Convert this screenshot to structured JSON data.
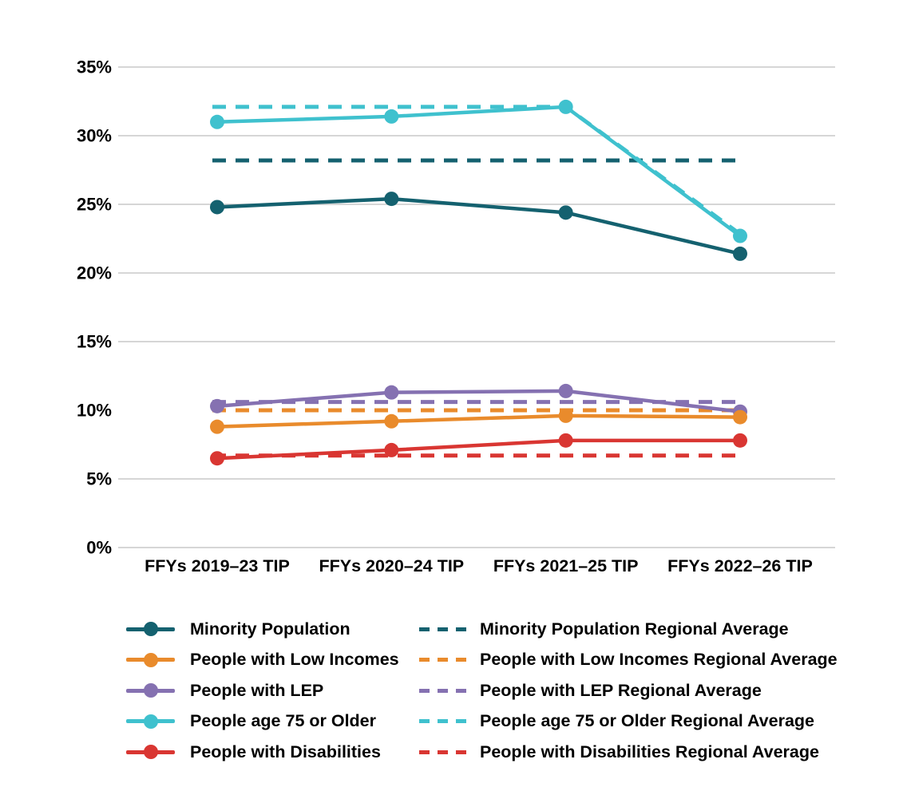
{
  "chart_data": {
    "type": "line",
    "title": "",
    "categories": [
      "FFYs 2019–23 TIP",
      "FFYs 2020–24 TIP",
      "FFYs 2021–25 TIP",
      "FFYs 2022–26 TIP"
    ],
    "y_axis": {
      "min": 0,
      "max": 35,
      "tick_step": 5,
      "tick_labels": [
        "0%",
        "5%",
        "10%",
        "15%",
        "20%",
        "25%",
        "30%",
        "35%"
      ],
      "gridline_values": [
        0,
        5,
        15,
        20,
        25,
        30,
        35
      ],
      "gridline_color": "#d6d6d6"
    },
    "series": [
      {
        "name": "Minority Population",
        "style": "solid",
        "marker": true,
        "color": "#14616f",
        "values": [
          24.8,
          25.4,
          24.4,
          21.4
        ]
      },
      {
        "name": "People with Low Incomes",
        "style": "solid",
        "marker": true,
        "color": "#e98b2c",
        "values": [
          8.8,
          9.2,
          9.6,
          9.5
        ]
      },
      {
        "name": "People with LEP",
        "style": "solid",
        "marker": true,
        "color": "#8571b1",
        "values": [
          10.3,
          11.3,
          11.4,
          9.9
        ]
      },
      {
        "name": "People age 75 or Older",
        "style": "solid",
        "marker": true,
        "color": "#3fc1ce",
        "values": [
          31.0,
          31.4,
          32.1,
          22.7
        ]
      },
      {
        "name": "People with Disabilities",
        "style": "solid",
        "marker": true,
        "color": "#d93632",
        "values": [
          6.5,
          7.1,
          7.8,
          7.8
        ]
      },
      {
        "name": "Minority Population Regional Average",
        "style": "dashed",
        "marker": false,
        "color": "#14616f",
        "values": [
          28.2,
          28.2,
          28.2,
          28.2
        ]
      },
      {
        "name": "People with Low Incomes Regional Average",
        "style": "dashed",
        "marker": false,
        "color": "#e98b2c",
        "values": [
          10.0,
          10.0,
          10.0,
          10.0
        ]
      },
      {
        "name": "People with LEP Regional Average",
        "style": "dashed",
        "marker": false,
        "color": "#8571b1",
        "values": [
          10.6,
          10.6,
          10.6,
          10.6
        ]
      },
      {
        "name": "People age 75 or Older Regional Average",
        "style": "dashed",
        "marker": false,
        "color": "#3fc1ce",
        "values": [
          32.1,
          32.1,
          32.1,
          23.0
        ]
      },
      {
        "name": "People with Disabilities Regional Average",
        "style": "dashed",
        "marker": false,
        "color": "#d93632",
        "values": [
          6.7,
          6.7,
          6.7,
          6.7
        ]
      }
    ],
    "legend": {
      "position": "bottom",
      "column1": [
        "Minority Population",
        "People with Low Incomes",
        "People with LEP",
        "People age 75 or Older",
        "People with Disabilities"
      ],
      "column2": [
        "Minority Population Regional Average",
        "People with Low Incomes Regional Average",
        "People with LEP Regional Average",
        "People age 75 or Older Regional Average",
        "People with Disabilities Regional Average"
      ]
    }
  },
  "colors": {
    "background": "#ffffff",
    "text": "#000000",
    "gridline": "#d6d6d6"
  }
}
